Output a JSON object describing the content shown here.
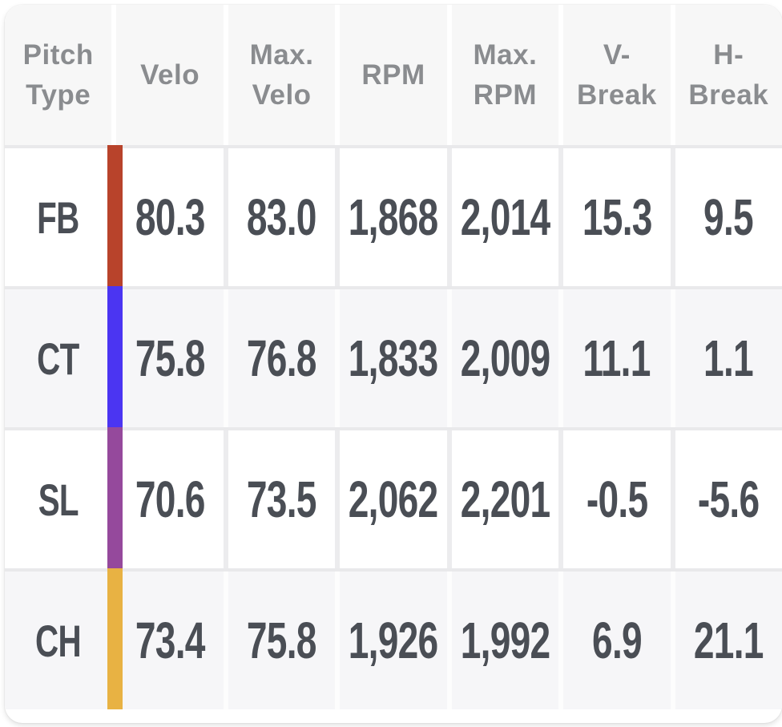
{
  "table": {
    "columns": [
      {
        "key": "pitch_type",
        "label": "Pitch\nType"
      },
      {
        "key": "velo",
        "label": "Velo"
      },
      {
        "key": "max_velo",
        "label": "Max.\nVelo"
      },
      {
        "key": "rpm",
        "label": "RPM"
      },
      {
        "key": "max_rpm",
        "label": "Max.\nRPM"
      },
      {
        "key": "v_break",
        "label": "V-\nBreak"
      },
      {
        "key": "h_break",
        "label": "H-\nBreak"
      }
    ],
    "rows": [
      {
        "pitch_type": "FB",
        "color": "#b8432b",
        "velo": "80.3",
        "max_velo": "83.0",
        "rpm": "1,868",
        "max_rpm": "2,014",
        "v_break": "15.3",
        "h_break": "9.5"
      },
      {
        "pitch_type": "CT",
        "color": "#4b35f2",
        "velo": "75.8",
        "max_velo": "76.8",
        "rpm": "1,833",
        "max_rpm": "2,009",
        "v_break": "11.1",
        "h_break": "1.1"
      },
      {
        "pitch_type": "SL",
        "color": "#95499c",
        "velo": "70.6",
        "max_velo": "73.5",
        "rpm": "2,062",
        "max_rpm": "2,201",
        "v_break": "-0.5",
        "h_break": "-5.6"
      },
      {
        "pitch_type": "CH",
        "color": "#e8b243",
        "velo": "73.4",
        "max_velo": "75.8",
        "rpm": "1,926",
        "max_rpm": "1,992",
        "v_break": "6.9",
        "h_break": "21.1"
      }
    ]
  },
  "colors": {
    "header_text": "#8a8c8f",
    "value_text": "#4a4e55",
    "header_cell_bg": "#f7f7f7",
    "divider": "#e9e9eb"
  }
}
